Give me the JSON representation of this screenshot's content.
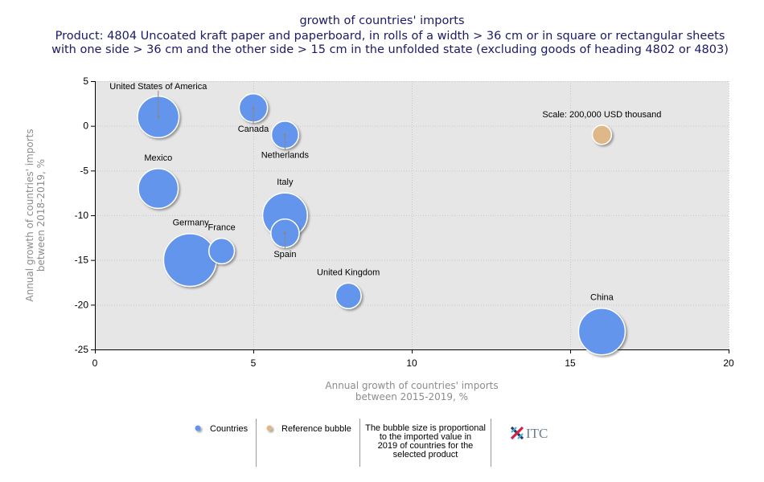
{
  "chart_data": {
    "type": "scatter",
    "subtype": "bubble",
    "title": "growth of countries' imports",
    "subtitle_lines": [
      "Product: 4804 Uncoated kraft paper and paperboard, in rolls of a width > 36 cm or in square or rectangular sheets",
      "with one side > 36 cm and the other side > 15 cm in the unfolded state (excluding goods of heading 4802 or 4803)"
    ],
    "xlabel_lines": [
      "Annual growth of countries' imports",
      "between 2015-2019, %"
    ],
    "ylabel_lines": [
      "Annual growth of countries' imports",
      "between 2018-2019, %"
    ],
    "xlim": [
      0,
      20
    ],
    "ylim": [
      -25,
      5
    ],
    "xticks": [
      0,
      5,
      10,
      15,
      20
    ],
    "yticks": [
      5,
      0,
      -5,
      -10,
      -15,
      -20,
      -25
    ],
    "grid": true,
    "series": [
      {
        "name": "Countries",
        "color": "#6495ed",
        "points": [
          {
            "label": "United States of America",
            "x": 2,
            "y": 1,
            "size": 0.79,
            "leader": true,
            "label_pos": "above"
          },
          {
            "label": "Canada",
            "x": 5,
            "y": 2,
            "size": 0.37,
            "leader": true,
            "label_pos": "below"
          },
          {
            "label": "Netherlands",
            "x": 6,
            "y": -1,
            "size": 0.34,
            "leader": true,
            "label_pos": "below"
          },
          {
            "label": "Mexico",
            "x": 2,
            "y": -7,
            "size": 0.73,
            "leader": false,
            "label_pos": "above"
          },
          {
            "label": "Italy",
            "x": 6,
            "y": -10,
            "size": 0.92,
            "leader": false,
            "label_pos": "above"
          },
          {
            "label": "Spain",
            "x": 6,
            "y": -12,
            "size": 0.37,
            "leader": true,
            "label_pos": "below"
          },
          {
            "label": "Germany",
            "x": 3,
            "y": -15,
            "size": 1.28,
            "leader": false,
            "label_pos": "above"
          },
          {
            "label": "France",
            "x": 4,
            "y": -14,
            "size": 0.3,
            "leader": false,
            "label_pos": "above"
          },
          {
            "label": "United Kingdom",
            "x": 8,
            "y": -19,
            "size": 0.3,
            "leader": false,
            "label_pos": "above"
          },
          {
            "label": "China",
            "x": 16,
            "y": -23,
            "size": 1.0,
            "leader": false,
            "label_pos": "above"
          }
        ]
      },
      {
        "name": "Reference bubble",
        "color": "#deb887",
        "points": [
          {
            "label": "Scale: 200,000 USD thousand",
            "x": 16,
            "y": -1,
            "size": 0.17,
            "leader": false,
            "label_pos": "above"
          }
        ]
      }
    ],
    "legend": {
      "placement": "bottom",
      "items": [
        {
          "label": "Countries",
          "color": "#6495ed"
        },
        {
          "label": "Reference bubble",
          "color": "#deb887"
        }
      ],
      "note_lines": [
        "The bubble size is proportional",
        "to the imported value in",
        "2019 of countries for the",
        "selected product"
      ],
      "logo_text": "ITC"
    }
  }
}
